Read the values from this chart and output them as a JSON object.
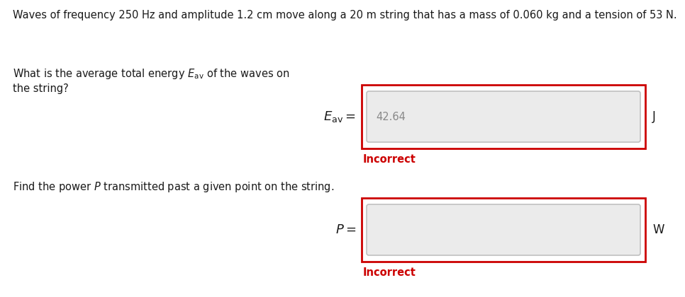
{
  "title_text": "Waves of frequency 250 Hz and amplitude 1.2 cm move along a 20 m string that has a mass of 0.060 kg and a tension of 53 N.",
  "q1_line1": "What is the average total energy  $E_{\\mathrm{av}}$  of the waves on",
  "q1_line2": "the string?",
  "q2_line1": "Find the power $P$ transmitted past a given point on the string.",
  "label1": "$E_{\\mathrm{av}}=$",
  "label2": "$P=$",
  "unit1": "J",
  "unit2": "W",
  "input_value1": "42.64",
  "input_value2": "",
  "incorrect_text": "Incorrect",
  "bg_color": "#ffffff",
  "box_outer_color": "#cc0000",
  "box_inner_color": "#ebebeb",
  "box_inner_border": "#c0c0c0",
  "incorrect_color": "#cc0000",
  "text_color": "#1a1a1a",
  "input_text_color": "#888888",
  "title_fontsize": 10.5,
  "body_fontsize": 10.5,
  "label_fontsize": 13,
  "unit_fontsize": 12
}
